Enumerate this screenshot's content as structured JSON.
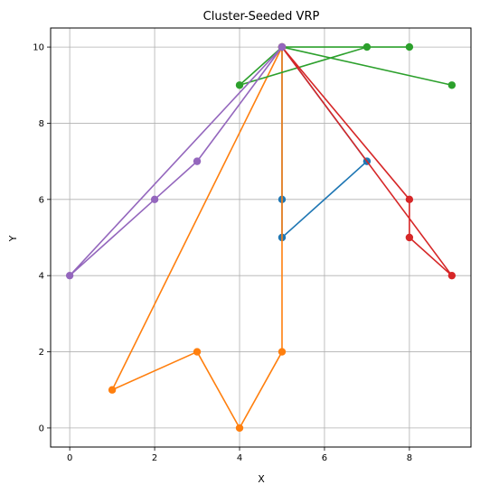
{
  "chart_data": {
    "type": "line",
    "title": "Cluster-Seeded VRP",
    "xlabel": "X",
    "ylabel": "Y",
    "xlim": [
      -0.45,
      9.45
    ],
    "ylim": [
      -0.5,
      10.5
    ],
    "xticks": [
      0,
      2,
      4,
      6,
      8
    ],
    "yticks": [
      0,
      2,
      4,
      6,
      8,
      10
    ],
    "grid": true,
    "legend": "none",
    "series": [
      {
        "color": "#1f77b4",
        "points": [
          [
            5,
            10
          ],
          [
            7,
            7
          ],
          [
            5,
            5
          ],
          [
            5,
            6
          ],
          [
            5,
            10
          ]
        ]
      },
      {
        "color": "#ff7f0e",
        "points": [
          [
            5,
            10
          ],
          [
            5,
            2
          ],
          [
            4,
            0
          ],
          [
            3,
            2
          ],
          [
            1,
            1
          ],
          [
            5,
            10
          ]
        ]
      },
      {
        "color": "#2ca02c",
        "points": [
          [
            5,
            10
          ],
          [
            8,
            10
          ],
          [
            7,
            10
          ],
          [
            4,
            9
          ],
          [
            5,
            10
          ]
        ]
      },
      {
        "color": "#2ca02c",
        "points": [
          [
            5,
            10
          ],
          [
            9,
            9
          ],
          [
            5,
            10
          ]
        ]
      },
      {
        "color": "#d62728",
        "points": [
          [
            5,
            10
          ],
          [
            9,
            4
          ],
          [
            8,
            5
          ],
          [
            8,
            6
          ],
          [
            5,
            10
          ]
        ]
      },
      {
        "color": "#9467bd",
        "points": [
          [
            5,
            10
          ],
          [
            3,
            7
          ],
          [
            2,
            6
          ],
          [
            0,
            4
          ],
          [
            5,
            10
          ]
        ]
      }
    ]
  }
}
